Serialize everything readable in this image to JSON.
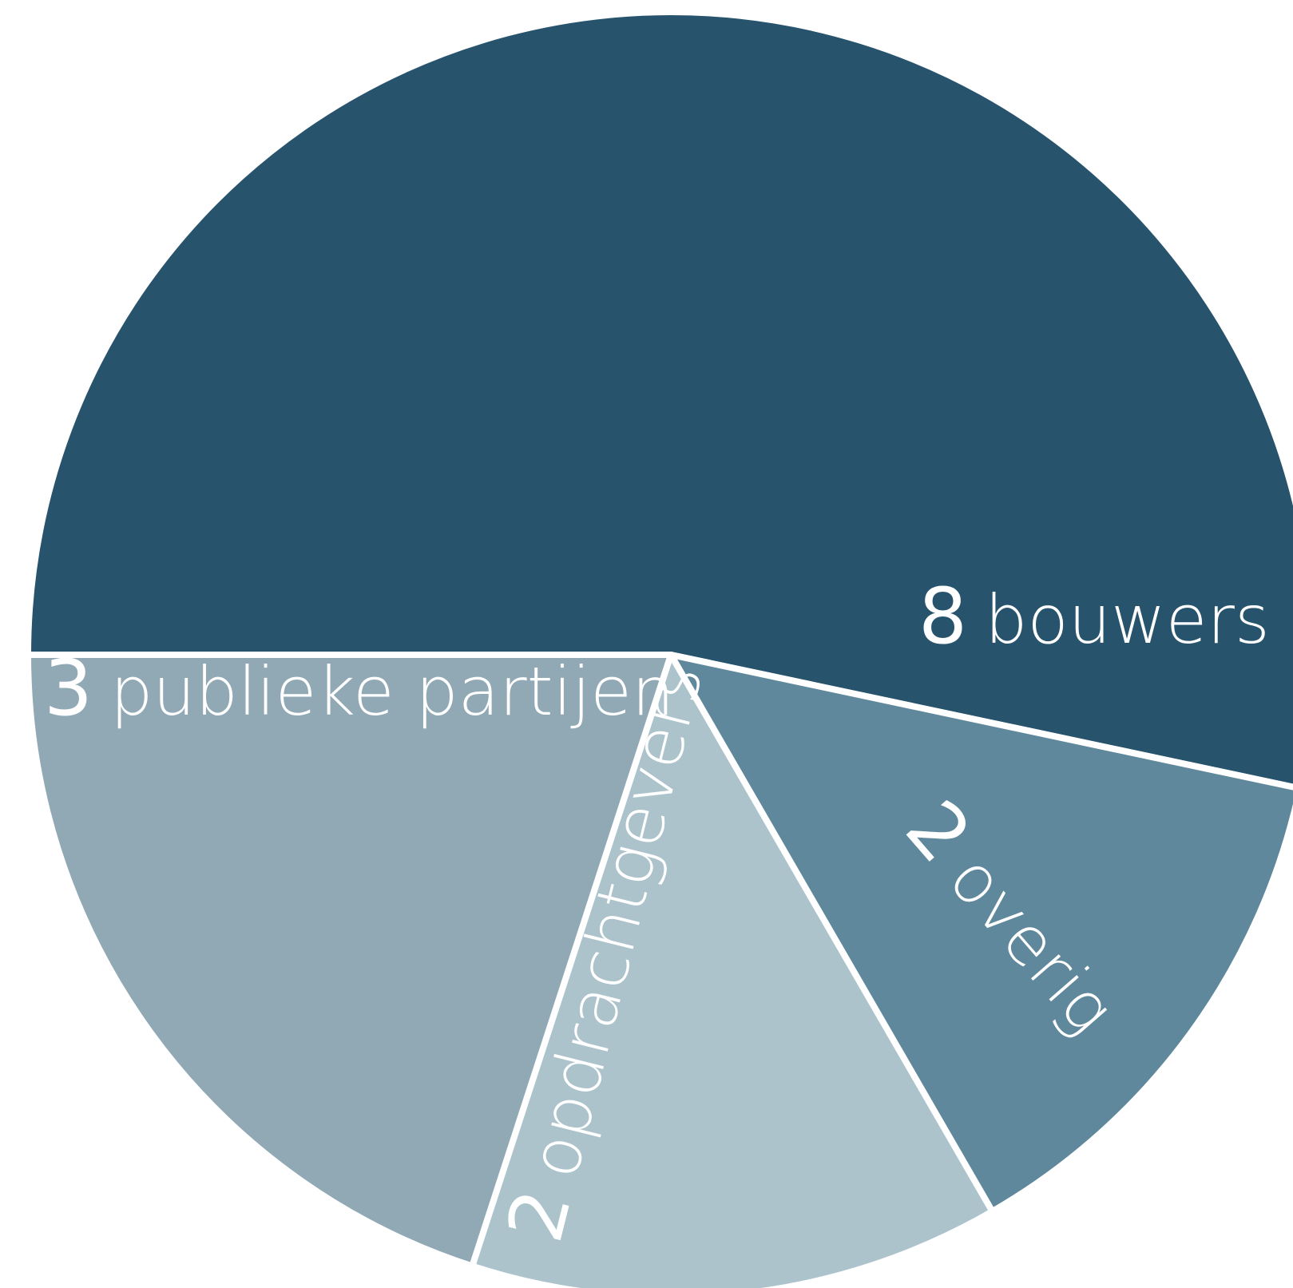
{
  "chart_data": {
    "type": "pie",
    "title": "",
    "slices": [
      {
        "value": 8,
        "label": "bouwers",
        "color": "#27536d"
      },
      {
        "value": 2,
        "label": "overig",
        "color": "#5f889c"
      },
      {
        "value": 2,
        "label": "opdrachtgevers",
        "color": "#acc3cc"
      },
      {
        "value": 3,
        "label": "publieke partijen",
        "color": "#91a8b5"
      }
    ],
    "separator_color": "#ffffff",
    "legend": "none"
  }
}
